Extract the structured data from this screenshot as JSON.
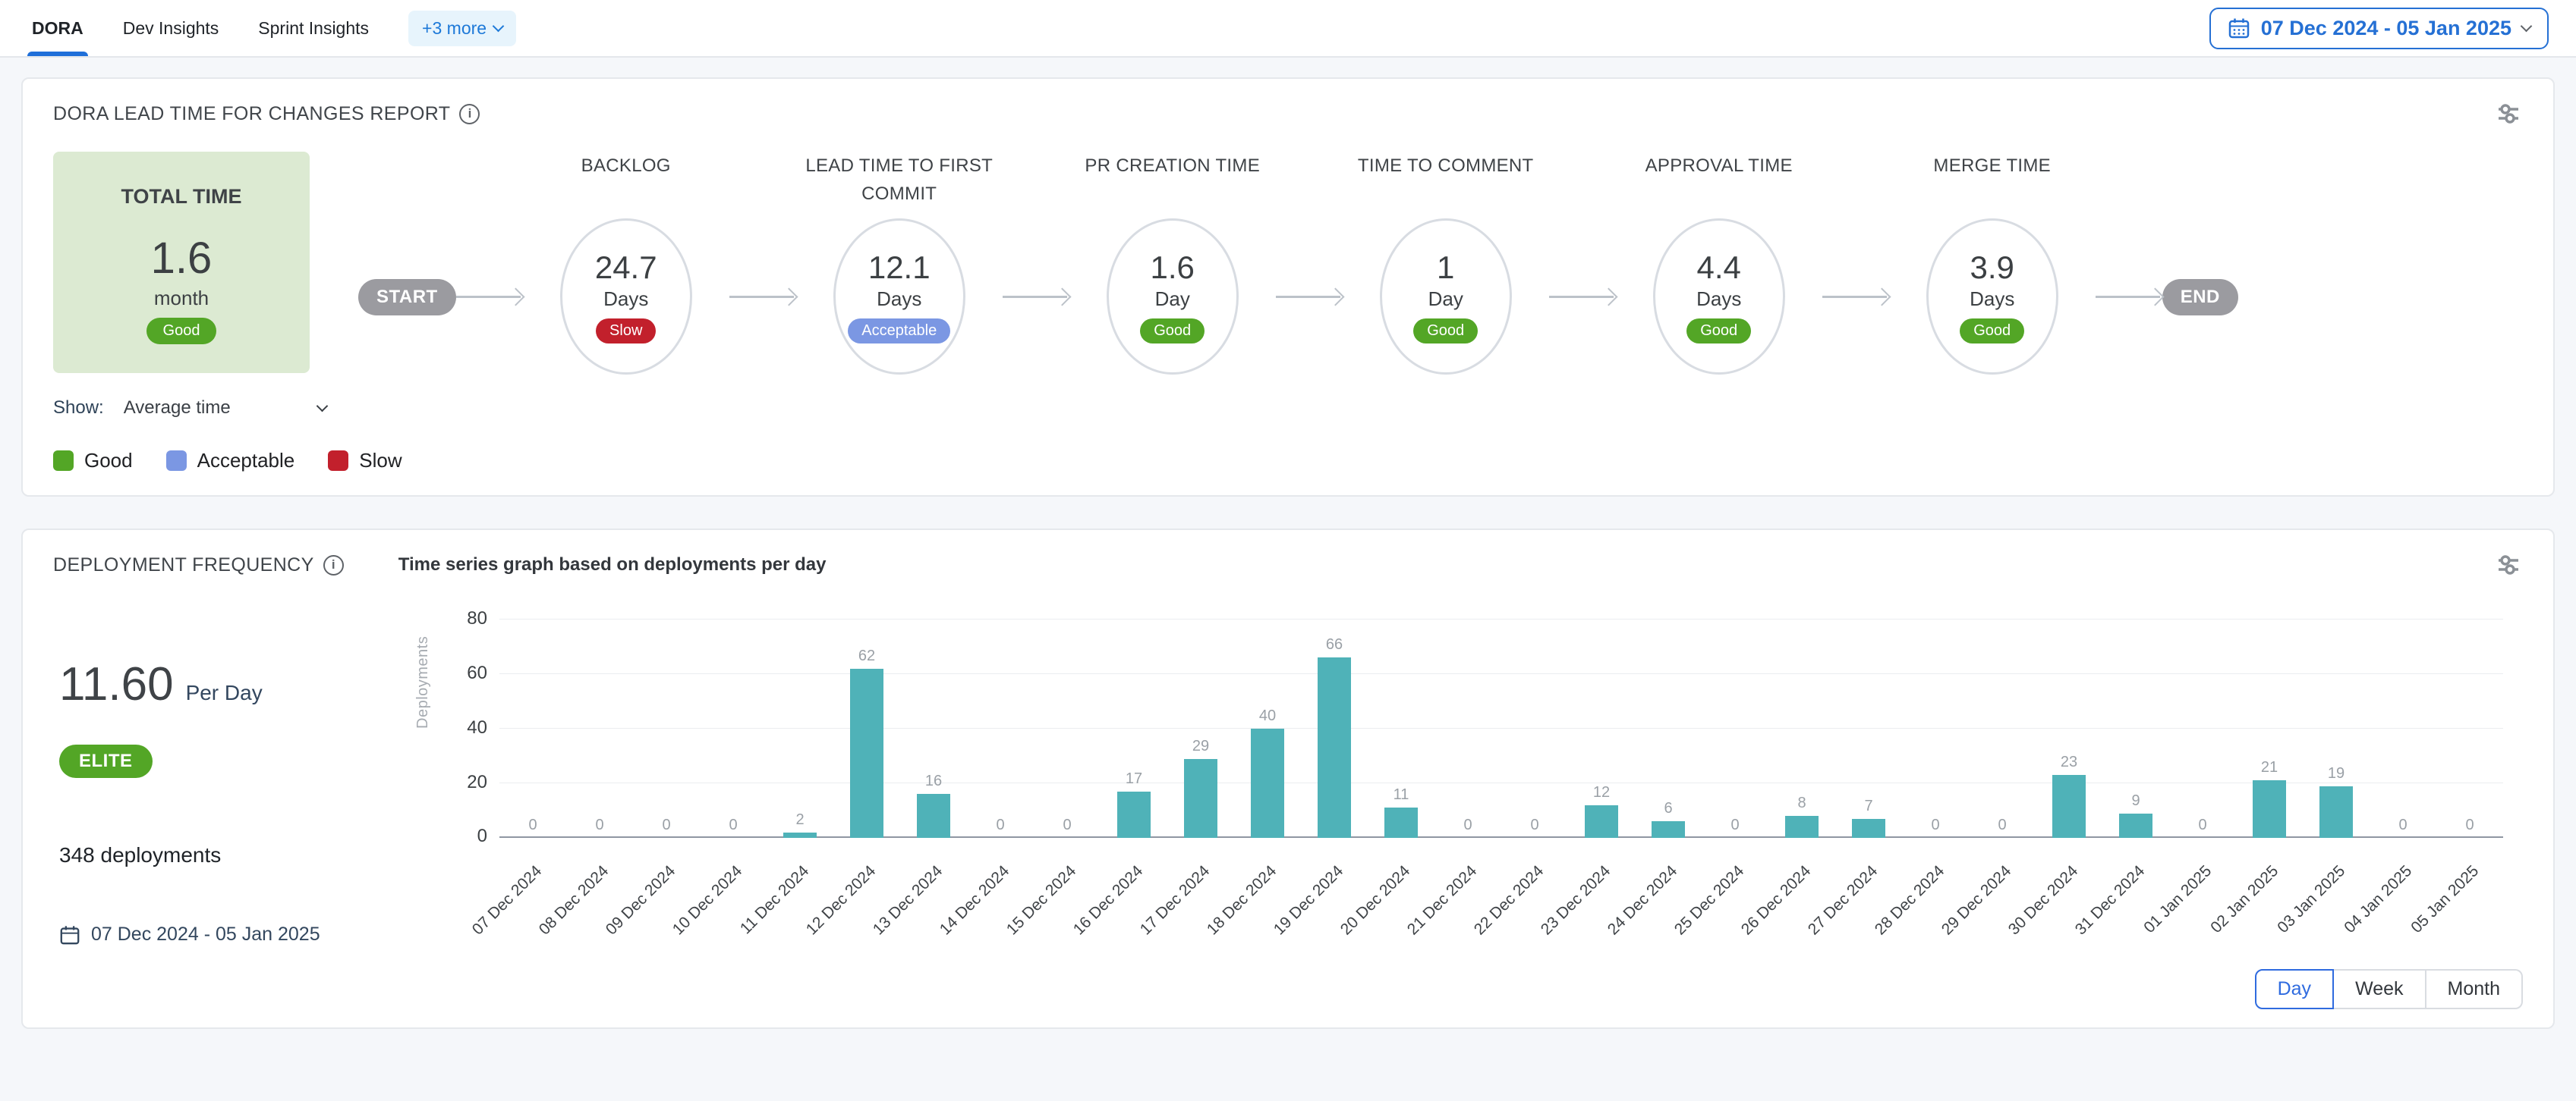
{
  "tabs": {
    "items": [
      {
        "label": "DORA",
        "active": true
      },
      {
        "label": "Dev Insights",
        "active": false
      },
      {
        "label": "Sprint Insights",
        "active": false
      }
    ],
    "more_label": "+3 more"
  },
  "date_range_picker": "07 Dec 2024 - 05 Jan 2025",
  "colors": {
    "accent_blue": "#1f6fd9",
    "bar": "#4fb2b8",
    "total_box_bg": "#dcead2",
    "rating": {
      "Good": "#53a626",
      "Acceptable": "#7b97e3",
      "Slow": "#c2202c"
    }
  },
  "lead_time_card": {
    "title": "DORA LEAD TIME FOR CHANGES REPORT",
    "total": {
      "label": "TOTAL TIME",
      "value": "1.6",
      "unit": "month",
      "rating": "Good"
    },
    "start_label": "START",
    "end_label": "END",
    "stages": [
      {
        "label": "BACKLOG",
        "value": "24.7",
        "unit": "Days",
        "rating": "Slow"
      },
      {
        "label": "LEAD TIME TO FIRST COMMIT",
        "value": "12.1",
        "unit": "Days",
        "rating": "Acceptable"
      },
      {
        "label": "PR CREATION TIME",
        "value": "1.6",
        "unit": "Day",
        "rating": "Good"
      },
      {
        "label": "TIME TO COMMENT",
        "value": "1",
        "unit": "Day",
        "rating": "Good"
      },
      {
        "label": "APPROVAL TIME",
        "value": "4.4",
        "unit": "Days",
        "rating": "Good"
      },
      {
        "label": "MERGE TIME",
        "value": "3.9",
        "unit": "Days",
        "rating": "Good"
      }
    ],
    "show_label": "Show:",
    "show_value": "Average time",
    "legend": [
      {
        "label": "Good",
        "color": "#53a626"
      },
      {
        "label": "Acceptable",
        "color": "#7b97e3"
      },
      {
        "label": "Slow",
        "color": "#c2202c"
      }
    ]
  },
  "deployment_card": {
    "title": "DEPLOYMENT FREQUENCY",
    "subtitle": "Time series graph based on deployments per day",
    "rate_value": "11.60",
    "rate_unit": "Per Day",
    "tier": "ELITE",
    "total_deployments": "348 deployments",
    "date_range": "07 Dec 2024 - 05 Jan 2025",
    "view_options": [
      {
        "label": "Day",
        "active": true
      },
      {
        "label": "Week",
        "active": false
      },
      {
        "label": "Month",
        "active": false
      }
    ]
  },
  "chart_data": {
    "type": "bar",
    "title": "Time series graph based on deployments per day",
    "xlabel": "",
    "ylabel": "Deployments",
    "ylim": [
      0,
      80
    ],
    "yticks": [
      0,
      20,
      40,
      60,
      80
    ],
    "grid": true,
    "bar_color": "#4fb2b8",
    "categories": [
      "07 Dec 2024",
      "08 Dec 2024",
      "09 Dec 2024",
      "10 Dec 2024",
      "11 Dec 2024",
      "12 Dec 2024",
      "13 Dec 2024",
      "14 Dec 2024",
      "15 Dec 2024",
      "16 Dec 2024",
      "17 Dec 2024",
      "18 Dec 2024",
      "19 Dec 2024",
      "20 Dec 2024",
      "21 Dec 2024",
      "22 Dec 2024",
      "23 Dec 2024",
      "24 Dec 2024",
      "25 Dec 2024",
      "26 Dec 2024",
      "27 Dec 2024",
      "28 Dec 2024",
      "29 Dec 2024",
      "30 Dec 2024",
      "31 Dec 2024",
      "01 Jan 2025",
      "02 Jan 2025",
      "03 Jan 2025",
      "04 Jan 2025",
      "05 Jan 2025"
    ],
    "values": [
      0,
      0,
      0,
      0,
      2,
      62,
      16,
      0,
      0,
      17,
      29,
      40,
      66,
      11,
      0,
      0,
      12,
      6,
      0,
      8,
      7,
      0,
      0,
      23,
      9,
      0,
      21,
      19,
      0,
      0
    ]
  }
}
